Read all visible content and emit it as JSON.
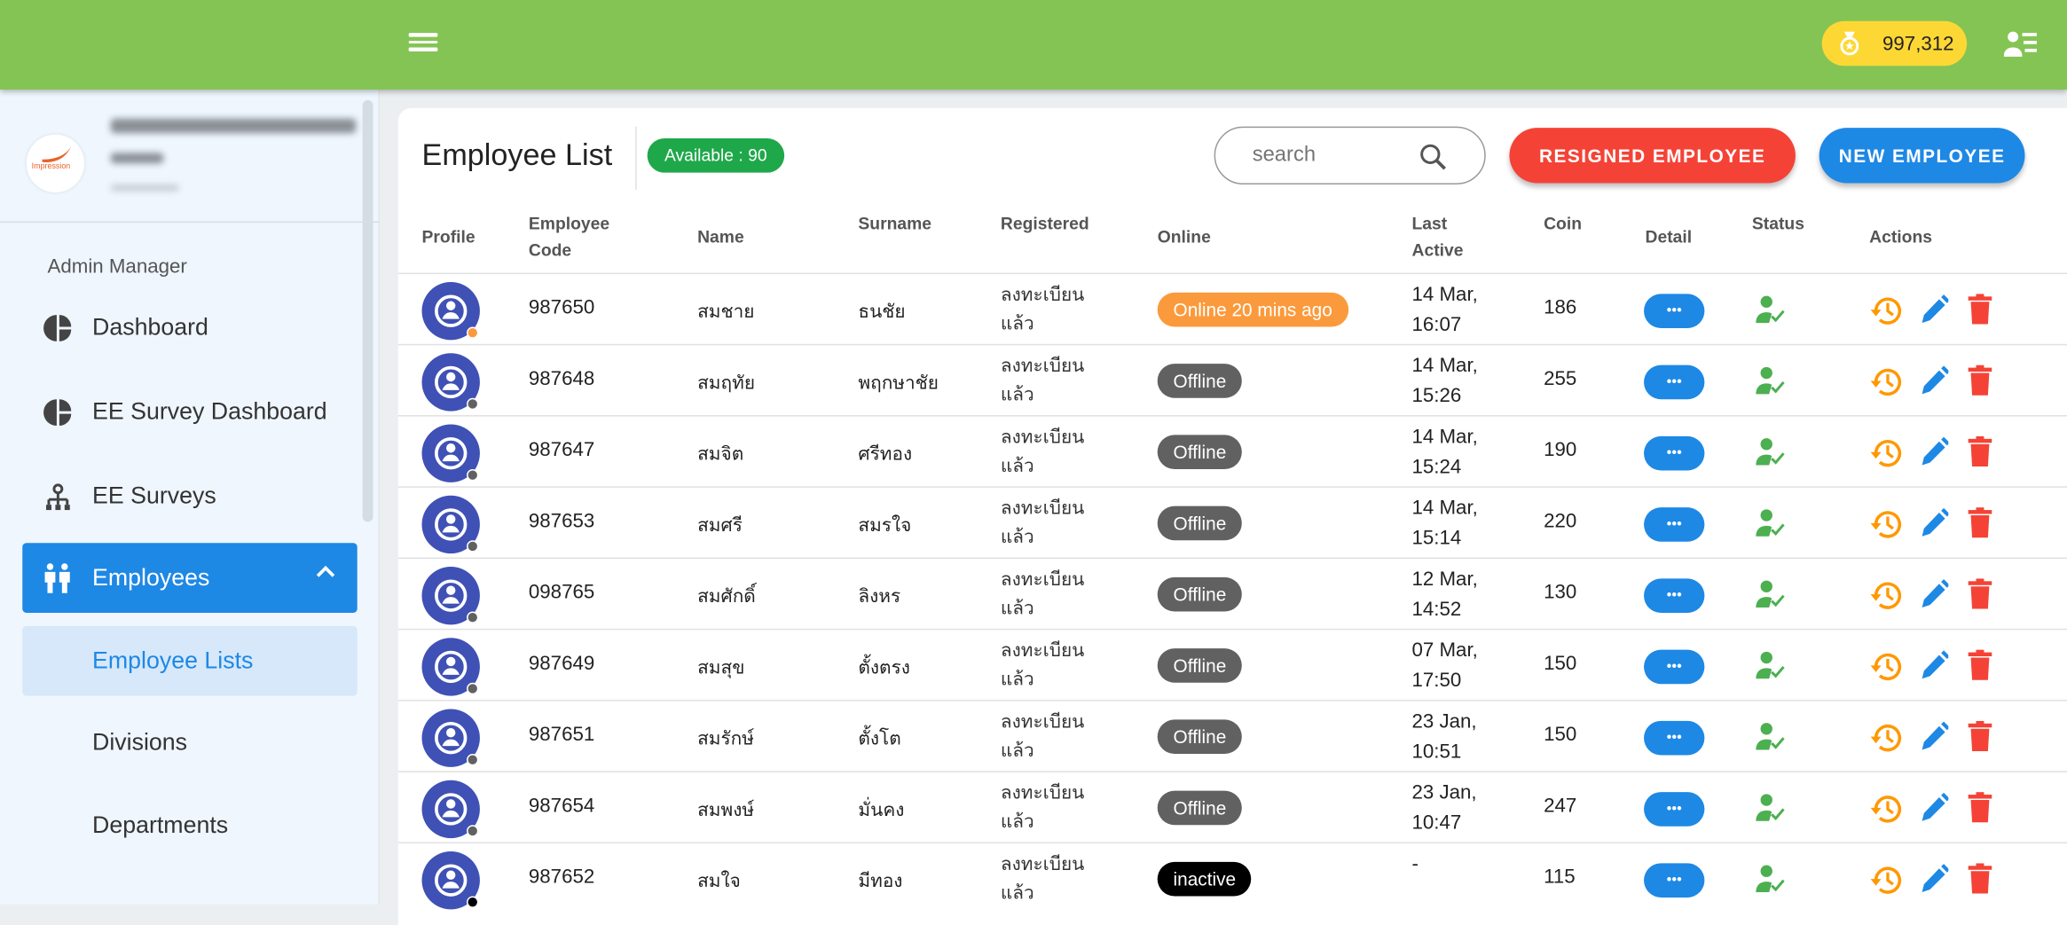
{
  "header": {
    "coin_balance": "997,312",
    "menu_icon": "hamburger-icon",
    "coin_icon": "medal-icon",
    "profile_icon": "person-list-icon",
    "color": "#84c454"
  },
  "sidebar": {
    "logo_text": "Impression",
    "section_label": "Admin Manager",
    "items": [
      {
        "label": "Dashboard",
        "icon": "pie-chart-icon"
      },
      {
        "label": "EE Survey Dashboard",
        "icon": "pie-chart-icon"
      },
      {
        "label": "EE Surveys",
        "icon": "sitemap-icon"
      },
      {
        "label": "Employees",
        "icon": "people-icon",
        "active": true
      },
      {
        "label": "Employee Lists",
        "sub": true,
        "selected": true
      },
      {
        "label": "Divisions",
        "sub": true
      },
      {
        "label": "Departments",
        "sub": true
      }
    ]
  },
  "main": {
    "title": "Employee List",
    "available_badge": "Available : 90",
    "search_placeholder": "search",
    "resigned_button": "RESIGNED EMPLOYEE",
    "new_button": "NEW EMPLOYEE",
    "colors": {
      "online": "#fb9a3c",
      "offline": "#616161",
      "inactive": "#000000",
      "detail": "#1e88e5",
      "resigned": "#f44336",
      "new": "#1e88e5",
      "available": "#1fa84a"
    },
    "columns": [
      "Profile",
      "Employee Code",
      "Name",
      "Surname",
      "Registered",
      "Online",
      "Last Active",
      "Coin",
      "Detail",
      "Status",
      "Actions"
    ],
    "rows": [
      {
        "code": "987650",
        "name": "สมชาย",
        "surname": "ธนชัย",
        "registered": "ลงทะเบียนแล้ว",
        "online": "Online 20 mins ago",
        "state": "online",
        "last_active": [
          "14 Mar,",
          "16:07"
        ],
        "coin": "186"
      },
      {
        "code": "987648",
        "name": "สมฤทัย",
        "surname": "พฤกษาชัย",
        "registered": "ลงทะเบียนแล้ว",
        "online": "Offline",
        "state": "offline",
        "last_active": [
          "14 Mar,",
          "15:26"
        ],
        "coin": "255"
      },
      {
        "code": "987647",
        "name": "สมจิต",
        "surname": "ศรีทอง",
        "registered": "ลงทะเบียนแล้ว",
        "online": "Offline",
        "state": "offline",
        "last_active": [
          "14 Mar,",
          "15:24"
        ],
        "coin": "190"
      },
      {
        "code": "987653",
        "name": "สมศรี",
        "surname": "สมรใจ",
        "registered": "ลงทะเบียนแล้ว",
        "online": "Offline",
        "state": "offline",
        "last_active": [
          "14 Mar,",
          "15:14"
        ],
        "coin": "220"
      },
      {
        "code": "098765",
        "name": "สมศักดิ์",
        "surname": "ลิงหร",
        "registered": "ลงทะเบียนแล้ว",
        "online": "Offline",
        "state": "offline",
        "last_active": [
          "12 Mar,",
          "14:52"
        ],
        "coin": "130"
      },
      {
        "code": "987649",
        "name": "สมสุข",
        "surname": "ตั้งตรง",
        "registered": "ลงทะเบียนแล้ว",
        "online": "Offline",
        "state": "offline",
        "last_active": [
          "07 Mar,",
          "17:50"
        ],
        "coin": "150"
      },
      {
        "code": "987651",
        "name": "สมรักษ์",
        "surname": "ตั้งโต",
        "registered": "ลงทะเบียนแล้ว",
        "online": "Offline",
        "state": "offline",
        "last_active": [
          "23 Jan,",
          "10:51"
        ],
        "coin": "150"
      },
      {
        "code": "987654",
        "name": "สมพงษ์",
        "surname": "มั่นคง",
        "registered": "ลงทะเบียนแล้ว",
        "online": "Offline",
        "state": "offline",
        "last_active": [
          "23 Jan,",
          "10:47"
        ],
        "coin": "247"
      },
      {
        "code": "987652",
        "name": "สมใจ",
        "surname": "มีทอง",
        "registered": "ลงทะเบียนแล้ว",
        "online": "inactive",
        "state": "inactive",
        "last_active": [
          "-",
          ""
        ],
        "coin": "115"
      }
    ]
  }
}
